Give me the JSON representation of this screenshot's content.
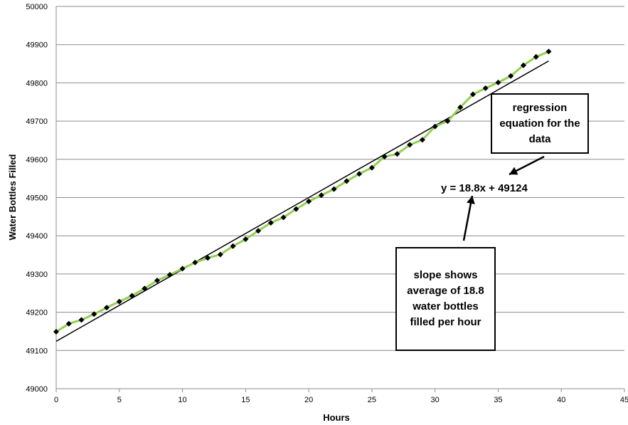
{
  "chart_data": {
    "type": "line",
    "title": "",
    "xlabel": "Hours",
    "ylabel": "Water Bottles Filled",
    "xlim": [
      0,
      45
    ],
    "ylim": [
      49000,
      50000
    ],
    "xticks": [
      "0",
      "5",
      "10",
      "15",
      "20",
      "25",
      "30",
      "35",
      "40",
      "45"
    ],
    "yticks": [
      "49000",
      "49100",
      "49200",
      "49300",
      "49400",
      "49500",
      "49600",
      "49700",
      "49800",
      "49900",
      "50000"
    ],
    "grid": "horizontal",
    "series": [
      {
        "name": "",
        "color": "#92d050",
        "marker_color": "#000000",
        "marker": "diamond",
        "x": [
          0,
          1,
          2,
          3,
          4,
          5,
          6,
          7,
          8,
          9,
          10,
          11,
          12,
          13,
          14,
          15,
          16,
          17,
          18,
          19,
          20,
          21,
          22,
          23,
          24,
          25,
          26,
          27,
          28,
          29,
          30,
          31,
          32,
          33,
          34,
          35,
          36,
          37,
          38,
          39
        ],
        "y": [
          49149,
          49170,
          49180,
          49195,
          49212,
          49228,
          49243,
          49262,
          49283,
          49298,
          49314,
          49330,
          49342,
          49351,
          49373,
          49391,
          49413,
          49434,
          49448,
          49470,
          49490,
          49506,
          49522,
          49543,
          49562,
          49578,
          49607,
          49614,
          49638,
          49651,
          49686,
          49700,
          49736,
          49770,
          49786,
          49801,
          49818,
          49846,
          49868,
          49882
        ]
      }
    ],
    "trendline": {
      "slope": 18.8,
      "intercept": 49124,
      "x_range": [
        0,
        39
      ],
      "color": "#000000"
    },
    "annotations": {
      "regression_box": "regression equation for the data",
      "equation": "y = 18.8x + 49124",
      "slope_box": "slope shows average of 18.8 water bottles filled per hour"
    }
  }
}
